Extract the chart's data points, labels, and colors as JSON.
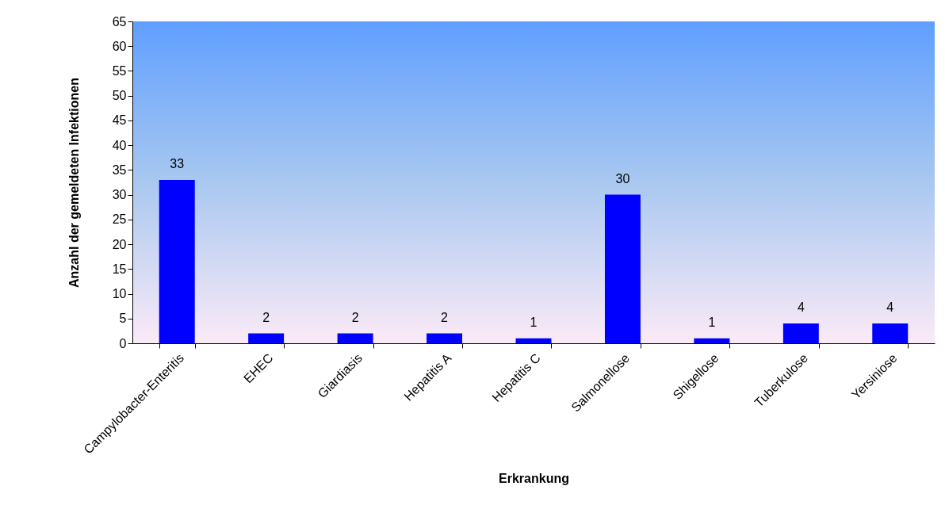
{
  "chart_data": {
    "type": "bar",
    "xlabel": "Erkrankung",
    "ylabel": "Anzahl der gemeldeten Infektionen",
    "categories": [
      "Campylobacter-Enteritis",
      "EHEC",
      "Giardiasis",
      "Hepatitis A",
      "Hepatitis C",
      "Salmonellose",
      "Shigellose",
      "Tuberkulose",
      "Yersiniose"
    ],
    "values": [
      33,
      2,
      2,
      2,
      1,
      30,
      1,
      4,
      4
    ],
    "color": "#0000ff",
    "ylim": [
      0,
      65
    ],
    "yticks": [
      0,
      5,
      10,
      15,
      20,
      25,
      30,
      35,
      40,
      45,
      50,
      55,
      60,
      65
    ],
    "data_labels": true,
    "grid": false
  }
}
